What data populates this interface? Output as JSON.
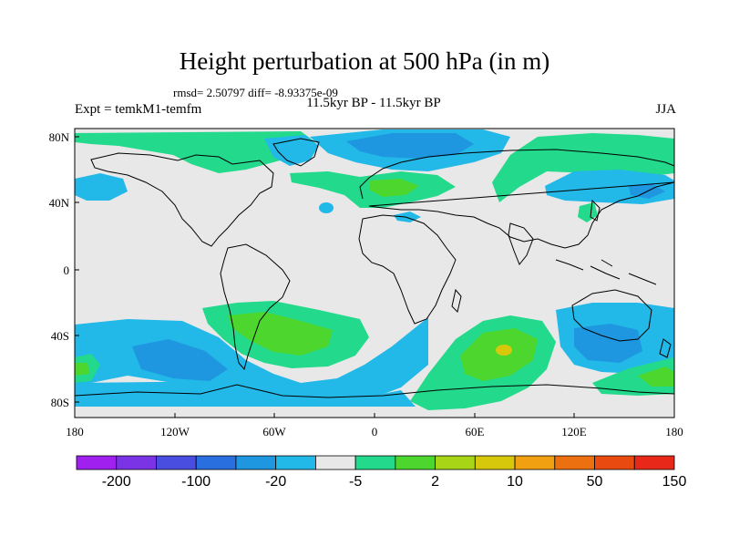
{
  "title": "Height perturbation at 500 hPa (in m)",
  "stats": "rmsd= 2.50797 diff= -8.93375e-09",
  "experiment": "Expt = temkM1-temfm",
  "period": "11.5kyr BP - 11.5kyr BP",
  "season": "JJA",
  "map": {
    "x_ticks": [
      "180",
      "120W",
      "60W",
      "0",
      "60E",
      "120E",
      "180"
    ],
    "y_ticks": [
      "80N",
      "40N",
      "0",
      "40S",
      "80S"
    ]
  },
  "colorbar": {
    "labels": [
      "-200",
      "-100",
      "-20",
      "-5",
      "2",
      "10",
      "50",
      "150"
    ],
    "colors": [
      "#a020f0",
      "#7a34e6",
      "#4a4ee0",
      "#2a6fe0",
      "#1e96e0",
      "#22b8e8",
      "#e8e8e8",
      "#22d98c",
      "#4cd62e",
      "#a8d616",
      "#d8c80c",
      "#f0a010",
      "#ec7010",
      "#e84a10",
      "#e82818"
    ]
  },
  "colors": {
    "background": "#e8e8e8",
    "light_blue": "#22b8e8",
    "blue": "#1e96e0",
    "teal_green": "#22d98c",
    "green": "#4cd62e",
    "yellow": "#d8c80c",
    "coast": "#000000"
  }
}
